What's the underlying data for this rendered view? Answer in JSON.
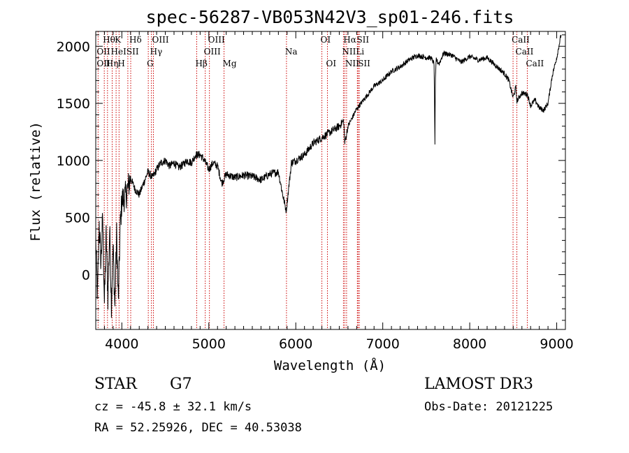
{
  "chart_data": {
    "type": "line",
    "title": "spec-56287-VB053N42V3_sp01-246.fits",
    "xlabel": "Wavelength (Å)",
    "ylabel": "Flux (relative)",
    "xlim": [
      3700,
      9100
    ],
    "ylim": [
      -480,
      2130
    ],
    "x_ticks": [
      4000,
      5000,
      6000,
      7000,
      8000,
      9000
    ],
    "x_tick_labels": [
      "4000",
      "5000",
      "6000",
      "7000",
      "8000",
      "9000"
    ],
    "y_ticks": [
      0,
      500,
      1000,
      1500,
      2000
    ],
    "y_tick_labels": [
      "0",
      "500",
      "1000",
      "1500",
      "2000"
    ],
    "grid": false,
    "spectrum": {
      "name": "flux",
      "x": [
        3700,
        3720,
        3740,
        3760,
        3780,
        3800,
        3820,
        3840,
        3860,
        3880,
        3900,
        3920,
        3940,
        3960,
        3980,
        4000,
        4050,
        4100,
        4150,
        4200,
        4250,
        4300,
        4350,
        4400,
        4450,
        4500,
        4550,
        4600,
        4650,
        4700,
        4750,
        4800,
        4850,
        4900,
        4950,
        5000,
        5050,
        5100,
        5150,
        5200,
        5300,
        5400,
        5500,
        5600,
        5700,
        5800,
        5850,
        5890,
        5950,
        6000,
        6100,
        6200,
        6300,
        6400,
        6500,
        6550,
        6563,
        6600,
        6700,
        6800,
        6900,
        7000,
        7100,
        7200,
        7300,
        7400,
        7500,
        7550,
        7590,
        7600,
        7605,
        7615,
        7630,
        7650,
        7700,
        7800,
        7900,
        8000,
        8100,
        8200,
        8300,
        8400,
        8450,
        8498,
        8530,
        8542,
        8600,
        8662,
        8700,
        8750,
        8800,
        8850,
        8900,
        8950,
        9000,
        9050
      ],
      "y": [
        300,
        -200,
        450,
        100,
        500,
        -250,
        350,
        -200,
        400,
        -250,
        250,
        -280,
        350,
        -250,
        400,
        650,
        700,
        850,
        750,
        700,
        800,
        900,
        850,
        920,
        980,
        1000,
        950,
        980,
        940,
        960,
        1000,
        980,
        1050,
        1050,
        1000,
        920,
        980,
        950,
        800,
        880,
        850,
        870,
        860,
        830,
        880,
        900,
        700,
        560,
        980,
        1000,
        1050,
        1150,
        1200,
        1250,
        1300,
        1350,
        1150,
        1300,
        1450,
        1550,
        1650,
        1700,
        1780,
        1820,
        1880,
        1920,
        1900,
        1900,
        1850,
        1150,
        1700,
        1890,
        1860,
        1850,
        1940,
        1920,
        1860,
        1910,
        1880,
        1900,
        1830,
        1760,
        1700,
        1550,
        1640,
        1520,
        1590,
        1580,
        1480,
        1530,
        1460,
        1440,
        1500,
        1750,
        1900,
        2100
      ]
    },
    "lines": [
      {
        "label": "Hθ",
        "x": 3798,
        "row": 0
      },
      {
        "label": "K",
        "x": 3934,
        "row": 0
      },
      {
        "label": "Hδ",
        "x": 4102,
        "row": 0
      },
      {
        "label": "OIII",
        "x": 4363,
        "row": 0
      },
      {
        "label": "OIII",
        "x": 5007,
        "row": 0
      },
      {
        "label": "OI",
        "x": 6300,
        "row": 0
      },
      {
        "label": "Hα",
        "x": 6563,
        "row": 0
      },
      {
        "label": "SII",
        "x": 6717,
        "row": 0
      },
      {
        "label": "CaII",
        "x": 8498,
        "row": 0
      },
      {
        "label": "OII",
        "x": 3727,
        "row": 1
      },
      {
        "label": "HeI",
        "x": 3889,
        "row": 1
      },
      {
        "label": "SII",
        "x": 4069,
        "row": 1
      },
      {
        "label": "Hγ",
        "x": 4340,
        "row": 1
      },
      {
        "label": "OIII",
        "x": 4959,
        "row": 1
      },
      {
        "label": "Na",
        "x": 5893,
        "row": 1
      },
      {
        "label": "NII",
        "x": 6548,
        "row": 1
      },
      {
        "label": "Li",
        "x": 6708,
        "row": 1
      },
      {
        "label": "CaII",
        "x": 8542,
        "row": 1
      },
      {
        "label": "OII",
        "x": 3727,
        "row": 2
      },
      {
        "label": "Hη",
        "x": 3835,
        "row": 2
      },
      {
        "label": "H",
        "x": 3968,
        "row": 2
      },
      {
        "label": "G",
        "x": 4304,
        "row": 2
      },
      {
        "label": "Hβ",
        "x": 4861,
        "row": 2
      },
      {
        "label": "Mg",
        "x": 5175,
        "row": 2
      },
      {
        "label": "OI",
        "x": 6364,
        "row": 2
      },
      {
        "label": "NII",
        "x": 6584,
        "row": 2
      },
      {
        "label": "SII",
        "x": 6731,
        "row": 2
      },
      {
        "label": "CaII",
        "x": 8662,
        "row": 2
      }
    ],
    "colors": {
      "spectrum": "#000000",
      "line_marker": "#cc0000"
    }
  },
  "info": {
    "class_label": "STAR",
    "subclass": "G7",
    "survey": "LAMOST DR3",
    "cz": "cz = -45.8 ± 32.1 km/s",
    "obs_date": "Obs-Date: 20121225",
    "coords": "RA =  52.25926, DEC =  40.53038"
  }
}
